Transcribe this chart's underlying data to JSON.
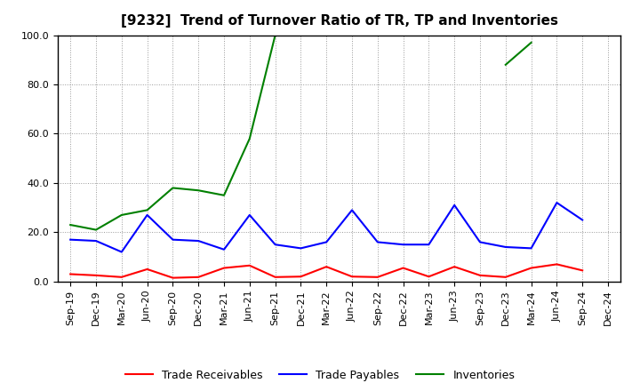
{
  "title": "[9232]  Trend of Turnover Ratio of TR, TP and Inventories",
  "x_labels": [
    "Sep-19",
    "Dec-19",
    "Mar-20",
    "Jun-20",
    "Sep-20",
    "Dec-20",
    "Mar-21",
    "Jun-21",
    "Sep-21",
    "Dec-21",
    "Mar-22",
    "Jun-22",
    "Sep-22",
    "Dec-22",
    "Mar-23",
    "Jun-23",
    "Sep-23",
    "Dec-23",
    "Mar-24",
    "Jun-24",
    "Sep-24",
    "Dec-24"
  ],
  "trade_receivables": [
    3.0,
    2.5,
    1.8,
    5.0,
    1.5,
    1.8,
    5.5,
    6.5,
    1.8,
    2.0,
    6.0,
    2.0,
    1.8,
    5.5,
    2.0,
    6.0,
    2.5,
    1.8,
    5.5,
    7.0,
    4.5,
    null
  ],
  "trade_payables": [
    17.0,
    16.5,
    12.0,
    27.0,
    17.0,
    16.5,
    13.0,
    27.0,
    15.0,
    13.5,
    16.0,
    29.0,
    16.0,
    15.0,
    15.0,
    31.0,
    16.0,
    14.0,
    13.5,
    32.0,
    25.0,
    null
  ],
  "inventories": [
    23.0,
    21.0,
    27.0,
    29.0,
    38.0,
    37.0,
    35.0,
    58.0,
    100.0,
    null,
    null,
    null,
    null,
    null,
    null,
    null,
    null,
    88.0,
    97.0,
    null,
    null,
    null
  ],
  "ylim": [
    0,
    100
  ],
  "yticks": [
    0.0,
    20.0,
    40.0,
    60.0,
    80.0,
    100.0
  ],
  "color_tr": "#ff0000",
  "color_tp": "#0000ff",
  "color_inv": "#008000",
  "legend_labels": [
    "Trade Receivables",
    "Trade Payables",
    "Inventories"
  ],
  "bg_color": "#ffffff",
  "grid_color": "#999999",
  "title_fontsize": 11,
  "axis_fontsize": 8,
  "legend_fontsize": 9
}
